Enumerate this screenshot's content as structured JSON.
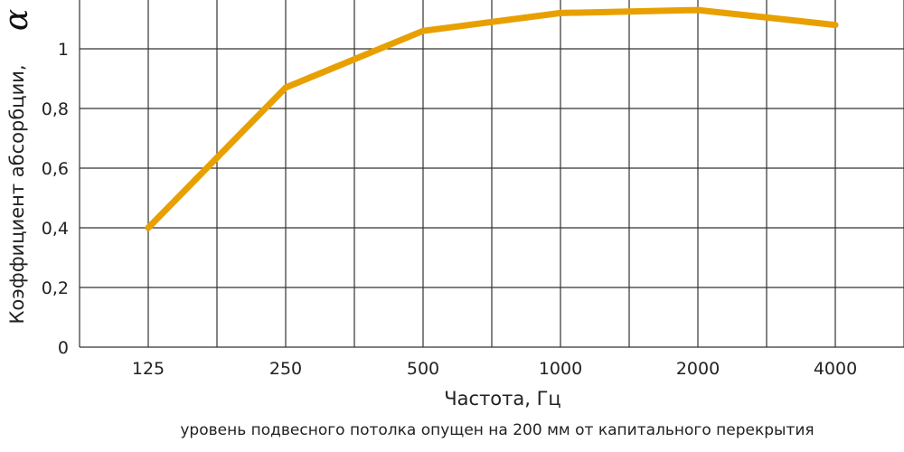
{
  "chart_data": {
    "type": "line",
    "title": "",
    "xlabel": "Частота, Гц",
    "ylabel": "Коэффициент абсорбции,",
    "ylabel_symbol": "α",
    "categories": [
      "125",
      "250",
      "500",
      "1000",
      "2000",
      "4000"
    ],
    "series": [
      {
        "values": [
          0.4,
          0.87,
          1.06,
          1.12,
          1.13,
          1.08
        ],
        "color": "#e8a000"
      }
    ],
    "yticks": [
      "0",
      "0,2",
      "0,4",
      "0,6",
      "0,8",
      "1"
    ],
    "ylim": [
      0,
      1.2
    ],
    "grid": true,
    "legend": "none",
    "note": "уровень подвесного потолка опущен на 200 мм от капитального перекрытия"
  }
}
